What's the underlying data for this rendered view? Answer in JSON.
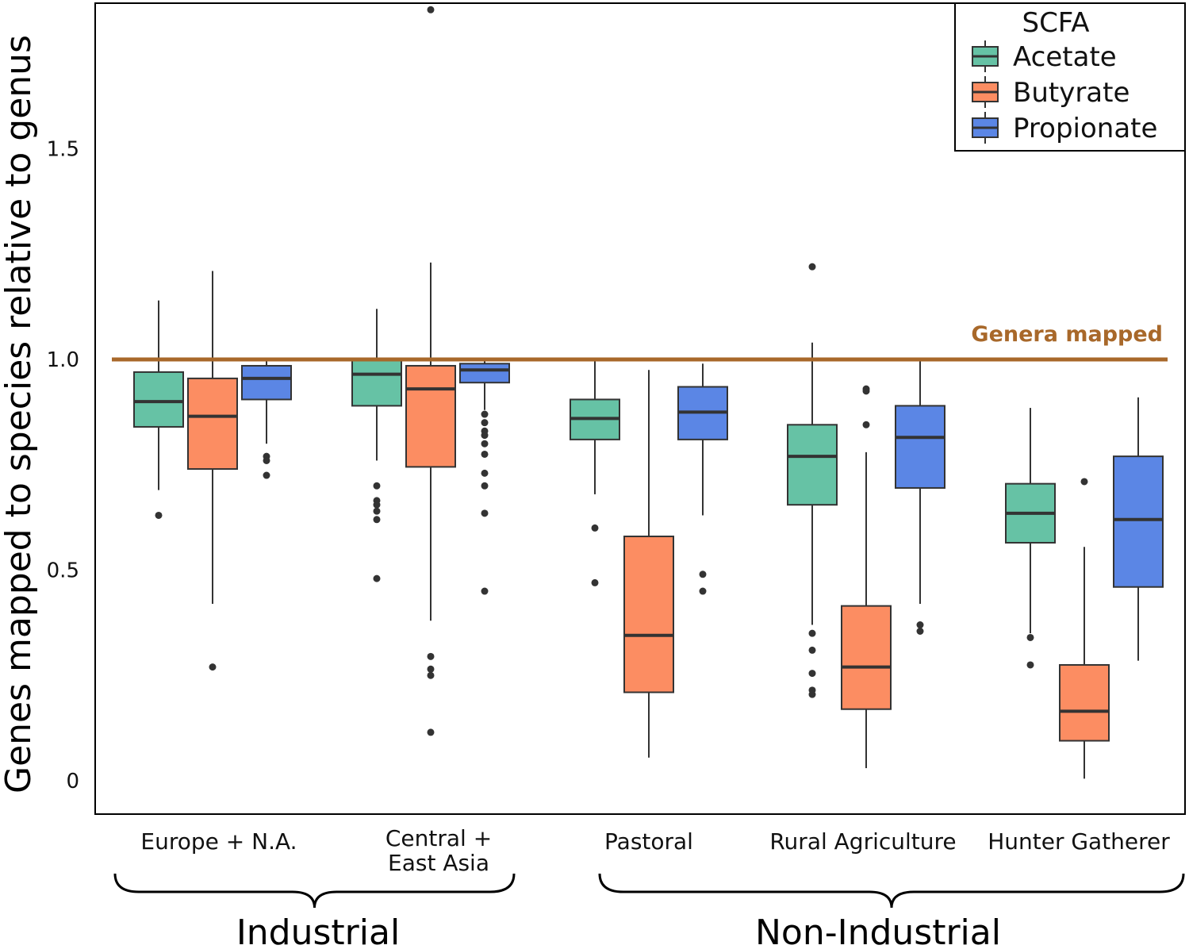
{
  "chart_data": {
    "type": "box",
    "ylabel": "Genes mapped to species relative to genus",
    "ylim": [
      -0.08,
      1.84
    ],
    "yticks": [
      {
        "value": 0,
        "label": "0"
      },
      {
        "value": 0.5,
        "label": "0.5"
      },
      {
        "value": 1.0,
        "label": "1.0"
      },
      {
        "value": 1.5,
        "label": "1.5"
      }
    ],
    "categories": [
      {
        "label_lines": [
          "Europe + N.A."
        ]
      },
      {
        "label_lines": [
          "Central +",
          "East Asia"
        ]
      },
      {
        "label_lines": [
          "Pastoral"
        ]
      },
      {
        "label_lines": [
          "Rural Agriculture"
        ]
      },
      {
        "label_lines": [
          "Hunter Gatherer"
        ]
      }
    ],
    "groups": [
      {
        "label": "Industrial",
        "from": 0,
        "to": 1
      },
      {
        "label": "Non-Industrial",
        "from": 2,
        "to": 4
      }
    ],
    "legend": {
      "title": "SCFA",
      "position": "top-right"
    },
    "reference_line": {
      "value": 1.0,
      "label": "Genera mapped",
      "color": "#a8682a"
    },
    "series": [
      {
        "name": "Acetate",
        "color": "#66c2a5",
        "boxes": [
          {
            "whisker_low": 0.69,
            "q1": 0.84,
            "median": 0.9,
            "q3": 0.97,
            "whisker_high": 1.14,
            "outliers": [
              0.63
            ]
          },
          {
            "whisker_low": 0.76,
            "q1": 0.89,
            "median": 0.965,
            "q3": 1.0,
            "whisker_high": 1.12,
            "outliers": [
              0.7,
              0.665,
              0.655,
              0.64,
              0.62,
              0.48
            ]
          },
          {
            "whisker_low": 0.68,
            "q1": 0.81,
            "median": 0.86,
            "q3": 0.905,
            "whisker_high": 1.0,
            "outliers": [
              0.6,
              0.47
            ]
          },
          {
            "whisker_low": 0.37,
            "q1": 0.655,
            "median": 0.77,
            "q3": 0.845,
            "whisker_high": 1.04,
            "outliers": [
              1.22,
              0.35,
              0.31,
              0.255,
              0.215,
              0.205
            ]
          },
          {
            "whisker_low": 0.35,
            "q1": 0.565,
            "median": 0.635,
            "q3": 0.705,
            "whisker_high": 0.885,
            "outliers": [
              0.34,
              0.275
            ]
          }
        ]
      },
      {
        "name": "Butyrate",
        "color": "#fc8d62",
        "boxes": [
          {
            "whisker_low": 0.42,
            "q1": 0.74,
            "median": 0.865,
            "q3": 0.955,
            "whisker_high": 1.21,
            "outliers": [
              0.27
            ]
          },
          {
            "whisker_low": 0.38,
            "q1": 0.745,
            "median": 0.93,
            "q3": 0.985,
            "whisker_high": 1.23,
            "outliers": [
              1.83,
              0.295,
              0.265,
              0.25,
              0.115
            ]
          },
          {
            "whisker_low": 0.055,
            "q1": 0.21,
            "median": 0.345,
            "q3": 0.58,
            "whisker_high": 0.975,
            "outliers": []
          },
          {
            "whisker_low": 0.03,
            "q1": 0.17,
            "median": 0.27,
            "q3": 0.415,
            "whisker_high": 0.78,
            "outliers": [
              0.93,
              0.925,
              0.845
            ]
          },
          {
            "whisker_low": 0.005,
            "q1": 0.095,
            "median": 0.165,
            "q3": 0.275,
            "whisker_high": 0.555,
            "outliers": [
              0.71
            ]
          }
        ]
      },
      {
        "name": "Propionate",
        "color": "#5b86e5",
        "boxes": [
          {
            "whisker_low": 0.8,
            "q1": 0.905,
            "median": 0.955,
            "q3": 0.985,
            "whisker_high": 1.0,
            "outliers": [
              0.77,
              0.76,
              0.725
            ]
          },
          {
            "whisker_low": 0.88,
            "q1": 0.945,
            "median": 0.975,
            "q3": 0.99,
            "whisker_high": 1.0,
            "outliers": [
              0.87,
              0.85,
              0.83,
              0.82,
              0.8,
              0.775,
              0.73,
              0.7,
              0.635,
              0.45
            ]
          },
          {
            "whisker_low": 0.63,
            "q1": 0.81,
            "median": 0.875,
            "q3": 0.935,
            "whisker_high": 0.99,
            "outliers": [
              0.49,
              0.45
            ]
          },
          {
            "whisker_low": 0.42,
            "q1": 0.695,
            "median": 0.815,
            "q3": 0.89,
            "whisker_high": 1.0,
            "outliers": [
              0.37,
              0.355
            ]
          },
          {
            "whisker_low": 0.285,
            "q1": 0.46,
            "median": 0.62,
            "q3": 0.77,
            "whisker_high": 0.91,
            "outliers": []
          }
        ]
      }
    ]
  }
}
